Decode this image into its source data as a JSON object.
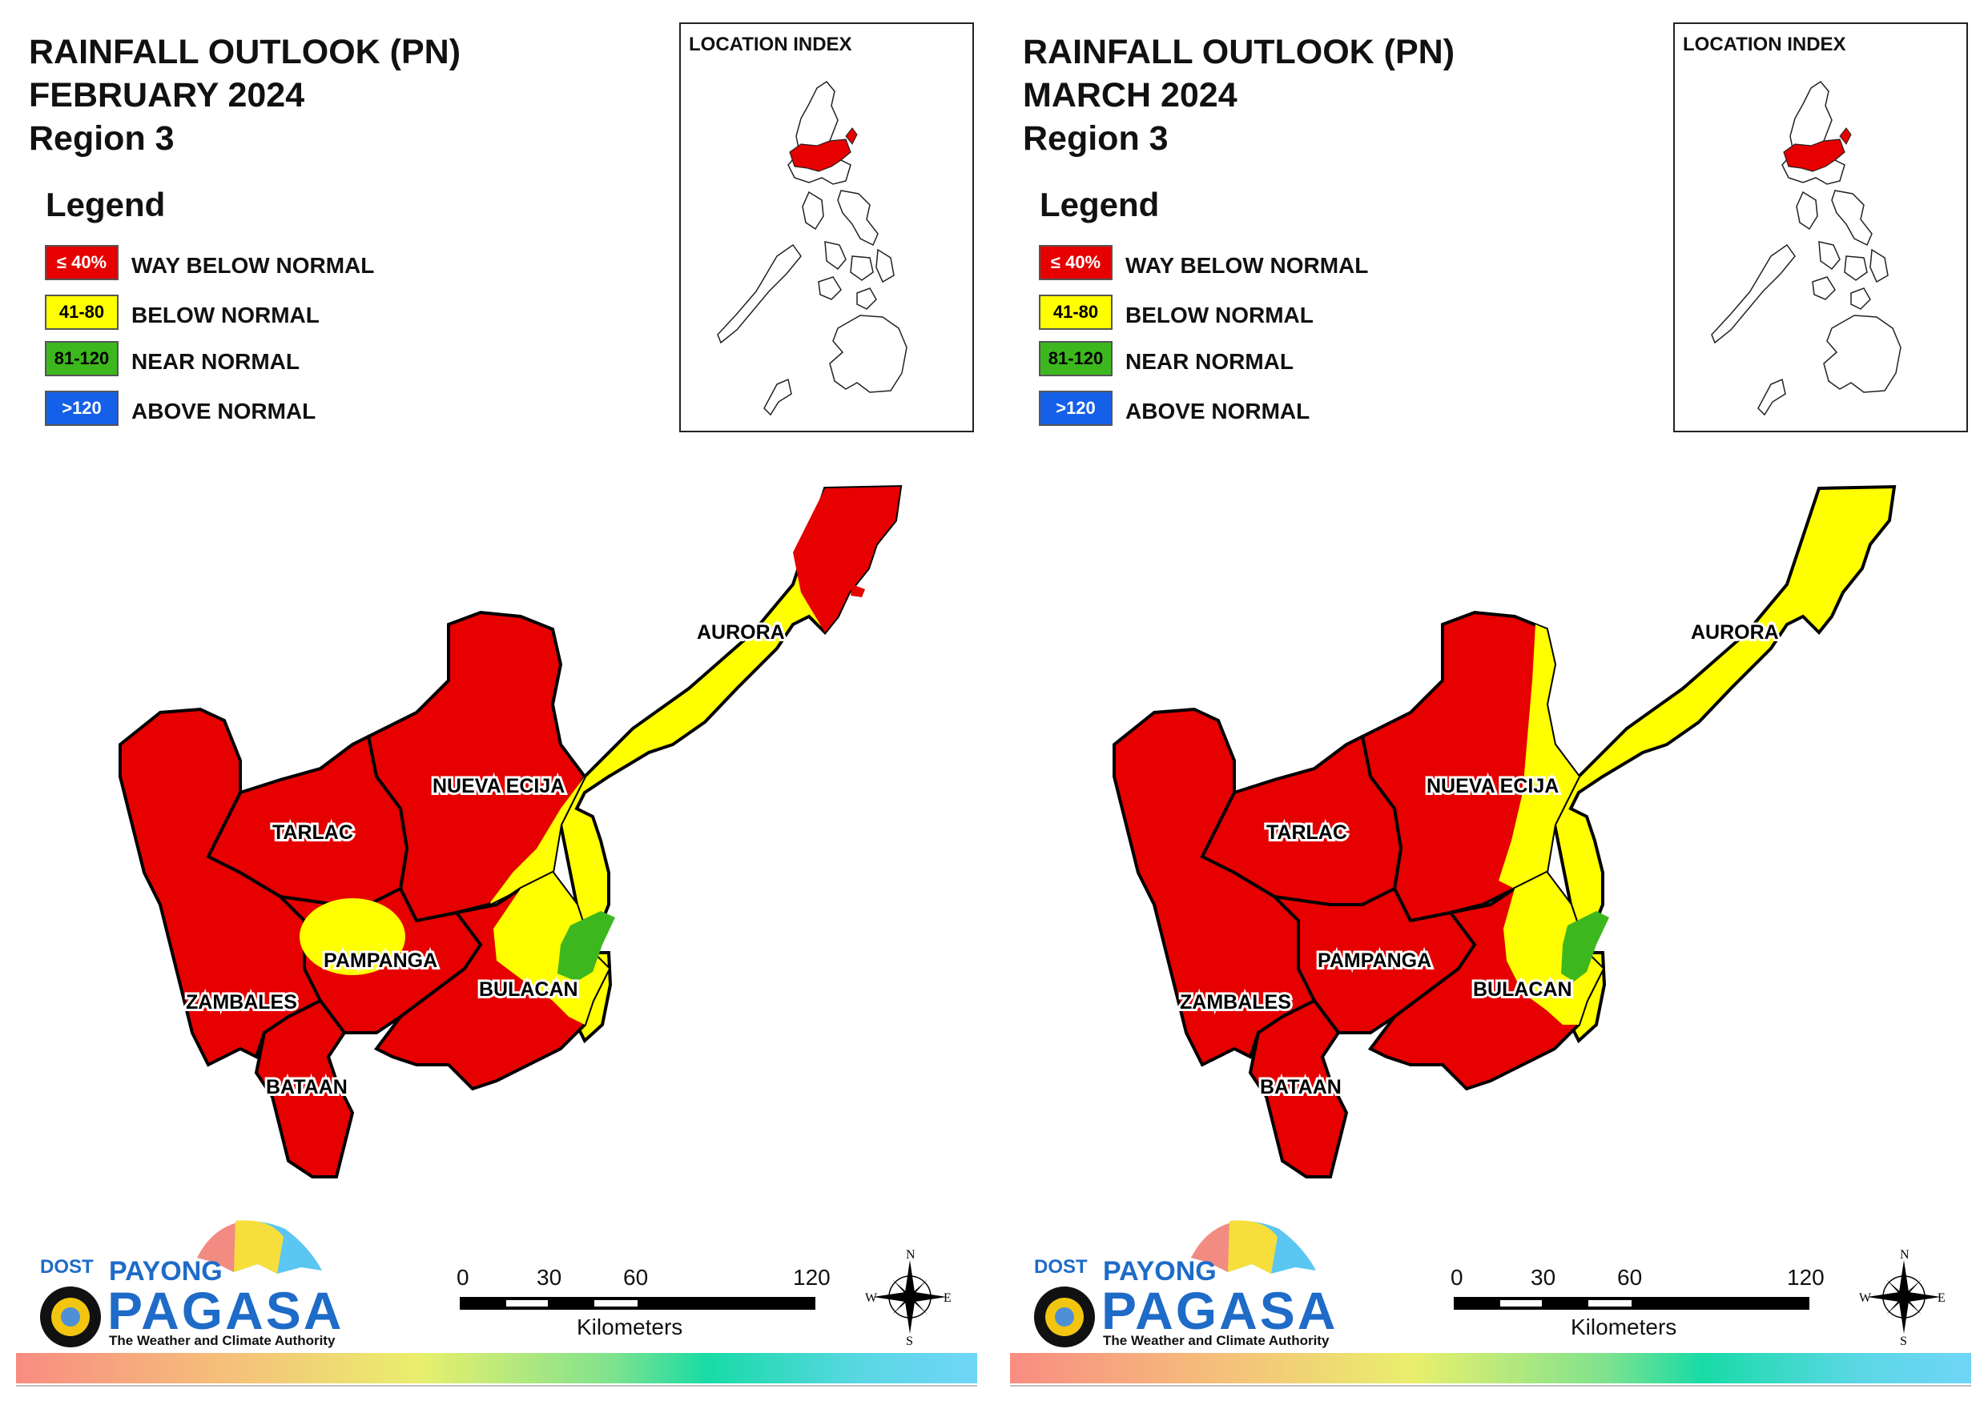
{
  "panels": [
    {
      "title_line1": "RAINFALL OUTLOOK (PN)",
      "title_line2": "FEBRUARY 2024",
      "title_line3": "Region 3",
      "legend_title": "Legend",
      "legend": [
        {
          "swatch": "≤ 40%",
          "label": "WAY BELOW NORMAL",
          "color": "#e60000",
          "text_color": "#ffffff"
        },
        {
          "swatch": "41-80",
          "label": "BELOW NORMAL",
          "color": "#ffff00",
          "text_color": "#000000"
        },
        {
          "swatch": "81-120",
          "label": "NEAR NORMAL",
          "color": "#3cb81e",
          "text_color": "#000000"
        },
        {
          "swatch": ">120",
          "label": "ABOVE NORMAL",
          "color": "#1560e8",
          "text_color": "#ffffff"
        }
      ],
      "inset_title": "LOCATION INDEX",
      "provinces": [
        "AURORA",
        "NUEVA ECIJA",
        "TARLAC",
        "PAMPANGA",
        "ZAMBALES",
        "BULACAN",
        "BATAAN"
      ],
      "scale_ticks": [
        "0",
        "30",
        "60",
        "120"
      ],
      "scale_unit": "Kilometers",
      "compass": {
        "n": "N",
        "s": "S",
        "e": "E",
        "w": "W"
      },
      "logo": {
        "dost": "DOST",
        "payong": "PAYONG",
        "pagasa": "PAGASA",
        "tagline": "The Weather and Climate Authority"
      }
    },
    {
      "title_line1": "RAINFALL OUTLOOK (PN)",
      "title_line2": "MARCH 2024",
      "title_line3": "Region 3",
      "legend_title": "Legend",
      "legend": [
        {
          "swatch": "≤ 40%",
          "label": "WAY BELOW NORMAL",
          "color": "#e60000",
          "text_color": "#ffffff"
        },
        {
          "swatch": "41-80",
          "label": "BELOW NORMAL",
          "color": "#ffff00",
          "text_color": "#000000"
        },
        {
          "swatch": "81-120",
          "label": "NEAR NORMAL",
          "color": "#3cb81e",
          "text_color": "#000000"
        },
        {
          "swatch": ">120",
          "label": "ABOVE NORMAL",
          "color": "#1560e8",
          "text_color": "#ffffff"
        }
      ],
      "inset_title": "LOCATION INDEX",
      "provinces": [
        "AURORA",
        "NUEVA ECIJA",
        "TARLAC",
        "PAMPANGA",
        "ZAMBALES",
        "BULACAN",
        "BATAAN"
      ],
      "scale_ticks": [
        "0",
        "30",
        "60",
        "120"
      ],
      "scale_unit": "Kilometers",
      "compass": {
        "n": "N",
        "s": "S",
        "e": "E",
        "w": "W"
      },
      "logo": {
        "dost": "DOST",
        "payong": "PAYONG",
        "pagasa": "PAGASA",
        "tagline": "The Weather and Climate Authority"
      }
    }
  ],
  "map_colors": {
    "way_below": "#e60000",
    "below": "#ffff00",
    "near": "#3cb81e",
    "above": "#1560e8",
    "highlight_region": "#e60000"
  }
}
